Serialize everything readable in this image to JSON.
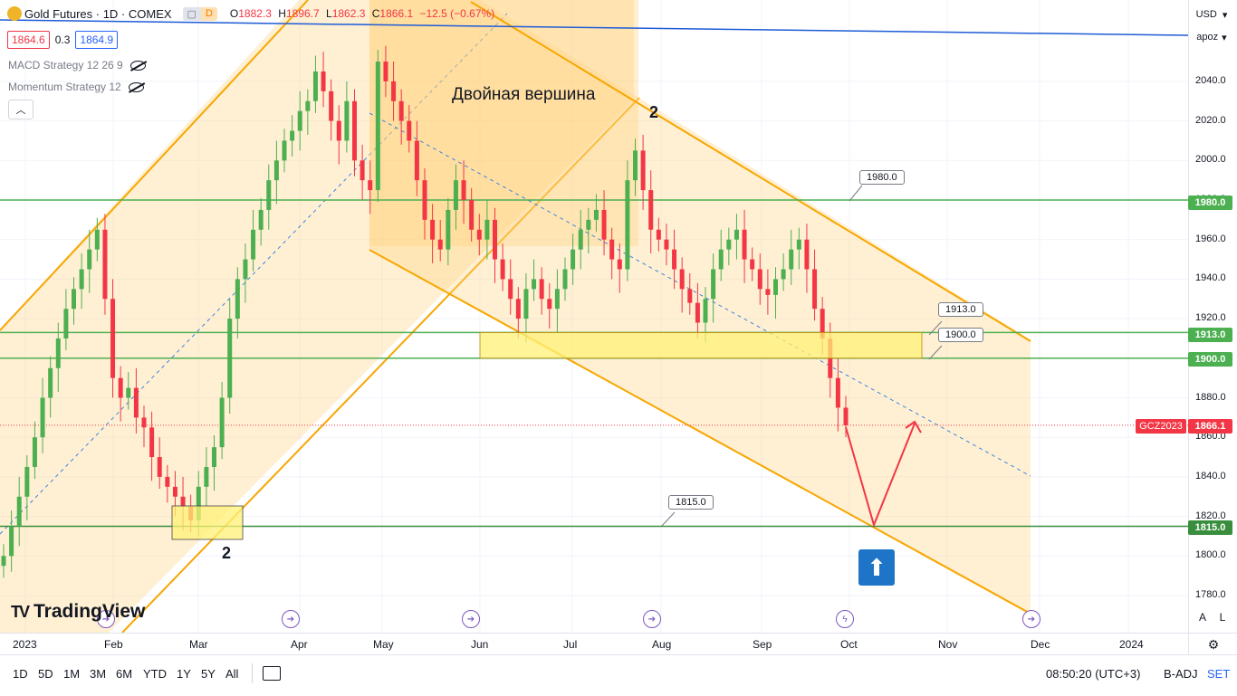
{
  "header": {
    "symbol_title": "Gold Futures · 1D · COMEX",
    "flag_d": "D",
    "ohlc": {
      "o_label": "O",
      "o": "1882.3",
      "h_label": "H",
      "h": "1896.7",
      "l_label": "L",
      "l": "1862.3",
      "c_label": "C",
      "c": "1866.1",
      "change": "−12.5 (−0.67%)"
    },
    "bid": "1864.6",
    "spread": "0.3",
    "ask": "1864.9"
  },
  "indicators": [
    {
      "label": "MACD Strategy 12 26 9"
    },
    {
      "label": "Momentum Strategy 12"
    }
  ],
  "annotations": {
    "pattern_title": "Двойная вершина",
    "top_number": "2",
    "bottom_number": "2",
    "callout_1980": "1980.0",
    "callout_1913": "1913.0",
    "callout_1900": "1900.0",
    "callout_1815": "1815.0"
  },
  "price_scale": {
    "currency": "USD",
    "mode": "apoz",
    "ticks": [
      "2040.0",
      "2020.0",
      "2000.0",
      "1980.0",
      "1960.0",
      "1940.0",
      "1920.0",
      "1900.0",
      "1880.0",
      "1860.0",
      "1840.0",
      "1820.0",
      "1800.0",
      "1780.0"
    ],
    "labels": [
      {
        "text": "1980.0",
        "color": "#4caf50"
      },
      {
        "text": "1913.0",
        "color": "#4caf50"
      },
      {
        "text": "1900.0",
        "color": "#4caf50"
      },
      {
        "text": "1866.1",
        "color": "#f23645"
      },
      {
        "text": "1815.0",
        "color": "#388e3c"
      }
    ],
    "symbol_tag": "GCZ2023",
    "auto_btn": "A",
    "log_btn": "L"
  },
  "time_axis": [
    "2023",
    "Feb",
    "Mar",
    "Apr",
    "May",
    "Jun",
    "Jul",
    "Aug",
    "Sep",
    "Oct",
    "Nov",
    "Dec",
    "2024"
  ],
  "bottom_bar": {
    "ranges": [
      "1D",
      "5D",
      "1M",
      "3M",
      "6M",
      "YTD",
      "1Y",
      "5Y",
      "All"
    ],
    "clock": "08:50:20 (UTC+3)",
    "adj": "B-ADJ",
    "set": "SET"
  },
  "brand": "TradingView",
  "colors": {
    "up": "#4caf50",
    "down": "#f23645",
    "channel": "#f7a600",
    "support": "#4caf50",
    "trend": "#1e5bd7",
    "zone": "#fff176",
    "arrow": "#f23645"
  },
  "chart_data": {
    "type": "candlestick",
    "symbol": "GCZ2023",
    "timeframe": "1D",
    "ylim": [
      1770,
      2065
    ],
    "horizontal_levels": [
      1980.0,
      1913.0,
      1900.0,
      1815.0
    ],
    "last_price": 1866.1,
    "closes": [
      1800,
      1815,
      1830,
      1845,
      1860,
      1880,
      1895,
      1910,
      1925,
      1935,
      1945,
      1955,
      1965,
      1930,
      1890,
      1880,
      1885,
      1870,
      1865,
      1850,
      1840,
      1835,
      1830,
      1825,
      1818,
      1835,
      1845,
      1855,
      1880,
      1920,
      1940,
      1950,
      1965,
      1975,
      1990,
      2000,
      2010,
      2015,
      2025,
      2030,
      2045,
      2035,
      2020,
      2010,
      2030,
      2000,
      1990,
      1985,
      2050,
      2040,
      2030,
      2020,
      2010,
      1990,
      1970,
      1960,
      1955,
      1975,
      1990,
      1980,
      1965,
      1960,
      1970,
      1950,
      1940,
      1930,
      1920,
      1935,
      1940,
      1930,
      1925,
      1935,
      1945,
      1955,
      1965,
      1970,
      1975,
      1960,
      1950,
      1945,
      1990,
      2005,
      1985,
      1965,
      1960,
      1955,
      1945,
      1935,
      1928,
      1918,
      1930,
      1945,
      1955,
      1960,
      1965,
      1950,
      1945,
      1935,
      1932,
      1940,
      1945,
      1955,
      1960,
      1945,
      1925,
      1910,
      1890,
      1875,
      1866.1
    ]
  }
}
